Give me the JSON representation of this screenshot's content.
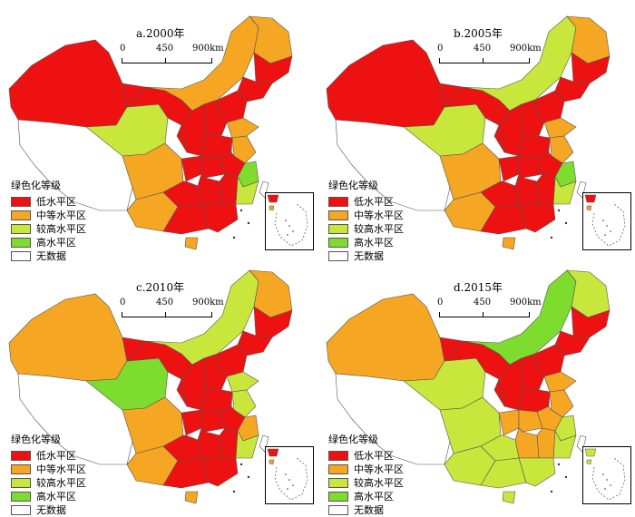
{
  "colors": {
    "low": "#ee1111",
    "medium": "#f5a623",
    "high": "#c8e63c",
    "veryhigh": "#7ddc2e",
    "nodata": "#ffffff"
  },
  "legend": {
    "title": "绿色化等级",
    "items": [
      {
        "key": "low",
        "label": "低水平区"
      },
      {
        "key": "medium",
        "label": "中等水平区"
      },
      {
        "key": "high",
        "label": "较高水平区"
      },
      {
        "key": "veryhigh",
        "label": "高水平区"
      },
      {
        "key": "nodata",
        "label": "无数据"
      }
    ]
  },
  "scale_labels": [
    "0",
    "450",
    "900km"
  ],
  "panels": [
    {
      "title": "a.2000年",
      "regions": {
        "xinjiang": "low",
        "tibet": "nodata",
        "qinghai": "high",
        "gansu": "low",
        "neimenggu": "medium",
        "heilongjiang": "medium",
        "jilin": "low",
        "liaoning": "low",
        "hebei": "low",
        "shanxi": "low",
        "shaanxi": "low",
        "ningxia": "low",
        "henan": "low",
        "shandong": "medium",
        "jiangsu": "medium",
        "sichuan": "medium",
        "chongqing": "low",
        "hubei": "low",
        "anhui": "low",
        "zhejiang": "veryhigh",
        "fujian": "high",
        "jiangxi": "low",
        "hunan": "low",
        "guizhou": "low",
        "yunnan": "medium",
        "guangxi": "low",
        "guangdong": "low",
        "hainan": "medium",
        "taiwan": "nodata"
      }
    },
    {
      "title": "b.2005年",
      "regions": {
        "xinjiang": "low",
        "tibet": "nodata",
        "qinghai": "high",
        "gansu": "low",
        "neimenggu": "high",
        "heilongjiang": "medium",
        "jilin": "low",
        "liaoning": "low",
        "hebei": "low",
        "shanxi": "low",
        "shaanxi": "low",
        "ningxia": "low",
        "henan": "low",
        "shandong": "medium",
        "jiangsu": "medium",
        "sichuan": "medium",
        "chongqing": "low",
        "hubei": "low",
        "anhui": "low",
        "zhejiang": "veryhigh",
        "fujian": "high",
        "jiangxi": "low",
        "hunan": "low",
        "guizhou": "low",
        "yunnan": "medium",
        "guangxi": "low",
        "guangdong": "low",
        "hainan": "medium",
        "taiwan": "nodata"
      }
    },
    {
      "title": "c.2010年",
      "regions": {
        "xinjiang": "medium",
        "tibet": "nodata",
        "qinghai": "veryhigh",
        "gansu": "low",
        "neimenggu": "high",
        "heilongjiang": "medium",
        "jilin": "low",
        "liaoning": "low",
        "hebei": "low",
        "shanxi": "low",
        "shaanxi": "low",
        "ningxia": "low",
        "henan": "low",
        "shandong": "high",
        "jiangsu": "high",
        "sichuan": "medium",
        "chongqing": "low",
        "hubei": "low",
        "anhui": "low",
        "zhejiang": "medium",
        "fujian": "high",
        "jiangxi": "low",
        "hunan": "low",
        "guizhou": "low",
        "yunnan": "medium",
        "guangxi": "low",
        "guangdong": "low",
        "hainan": "medium",
        "taiwan": "nodata"
      }
    },
    {
      "title": "d.2015年",
      "regions": {
        "xinjiang": "medium",
        "tibet": "nodata",
        "qinghai": "high",
        "gansu": "low",
        "neimenggu": "veryhigh",
        "heilongjiang": "high",
        "jilin": "low",
        "liaoning": "low",
        "hebei": "low",
        "shanxi": "low",
        "shaanxi": "low",
        "ningxia": "low",
        "henan": "low",
        "shandong": "medium",
        "jiangsu": "medium",
        "sichuan": "high",
        "chongqing": "medium",
        "hubei": "medium",
        "anhui": "medium",
        "zhejiang": "high",
        "fujian": "high",
        "jiangxi": "medium",
        "hunan": "medium",
        "guizhou": "high",
        "yunnan": "high",
        "guangxi": "high",
        "guangdong": "high",
        "hainan": "high",
        "taiwan": "nodata"
      }
    }
  ]
}
